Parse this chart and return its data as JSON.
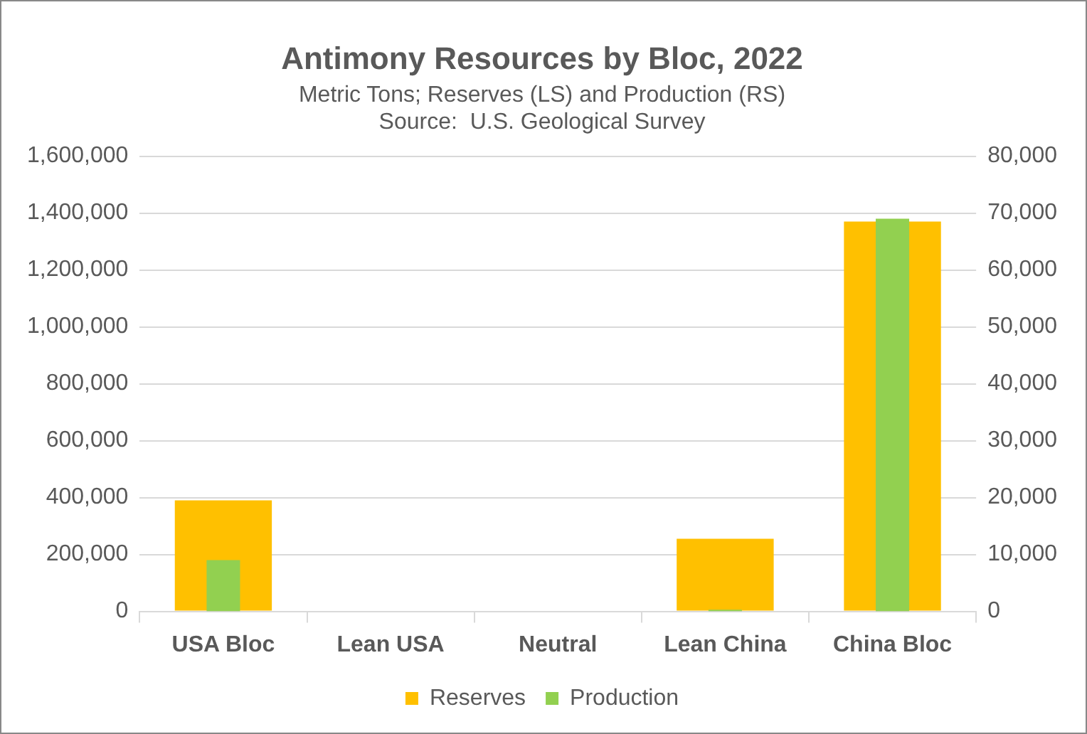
{
  "chart_data": {
    "type": "bar",
    "title": "Antimony Resources by Bloc, 2022",
    "subtitle": "Metric Tons; Reserves (LS) and Production (RS)",
    "annotations": [
      "Source:  U.S. Geological Survey"
    ],
    "categories": [
      "USA Bloc",
      "Lean USA",
      "Neutral",
      "Lean China",
      "China Bloc"
    ],
    "series": [
      {
        "name": "Reserves",
        "color": "#ffc000",
        "values": [
          390000,
          0,
          0,
          255000,
          1370000
        ]
      },
      {
        "name": "Production",
        "color": "#92d050",
        "axis": "y2",
        "values": [
          9000,
          0,
          0,
          300,
          69000
        ]
      }
    ],
    "ylim": [
      0,
      1600000
    ],
    "yticks": [
      {
        "value": 0,
        "label": "0"
      },
      {
        "value": 200000,
        "label": "200,000"
      },
      {
        "value": 400000,
        "label": "400,000"
      },
      {
        "value": 600000,
        "label": "600,000"
      },
      {
        "value": 800000,
        "label": "800,000"
      },
      {
        "value": 1000000,
        "label": "1,000,000"
      },
      {
        "value": 1200000,
        "label": "1,200,000"
      },
      {
        "value": 1400000,
        "label": "1,400,000"
      },
      {
        "value": 1600000,
        "label": "1,600,000"
      }
    ],
    "y2lim": [
      0,
      80000
    ],
    "y2ticks": [
      {
        "value": 0,
        "label": "0"
      },
      {
        "value": 10000,
        "label": "10,000"
      },
      {
        "value": 20000,
        "label": "20,000"
      },
      {
        "value": 30000,
        "label": "30,000"
      },
      {
        "value": 40000,
        "label": "40,000"
      },
      {
        "value": 50000,
        "label": "50,000"
      },
      {
        "value": 60000,
        "label": "60,000"
      },
      {
        "value": 70000,
        "label": "70,000"
      },
      {
        "value": 80000,
        "label": "80,000"
      }
    ],
    "grid": "y",
    "legend": "bottom"
  }
}
